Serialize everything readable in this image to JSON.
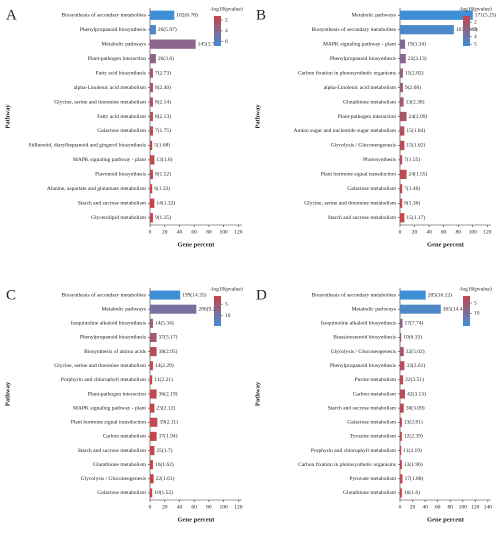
{
  "chart_data": [
    {
      "type": "bar",
      "panel": "A",
      "xlabel": "Gene percent",
      "ylabel": "Pathway",
      "legend_title": "-log10(pvalue)",
      "categories": [
        "Biosynthesis of secondary metabolites",
        "Phenylpropanoid biosynthesis",
        "Metabolic pathways",
        "Plant-pathogen interaction",
        "Fatty acid biosynthesis",
        "alpha-Linolenic acid metabolism",
        "Glycine, serine and threonine metabolism",
        "Fatty acid metabolism",
        "Galactose metabolism",
        "Stilbenoid, diarylheptanoid and gingerol biosynthesis",
        "MAPK signaling pathway - plant",
        "Flavonoid biosynthesis",
        "Alanine, aspartate and glutamate metabolism",
        "Starch and sucrose metabolism",
        "Glycerolipid metabolism"
      ],
      "values": [
        33,
        8,
        62,
        8,
        4,
        4,
        4,
        4,
        4,
        3,
        6,
        4,
        3,
        6,
        4
      ],
      "labels": [
        "102(6.78)",
        "26(5.97)",
        "145(3.77)",
        "26(3.6)",
        "7(2.73)",
        "8(2.40)",
        "8(2.14)",
        "8(2.13)",
        "7(1.75)",
        "5(1.68)",
        "13(1.6)",
        "8(1.52)",
        "6(1.33)",
        "14(1.32)",
        "9(1.25)"
      ],
      "color_values": [
        6.78,
        5.97,
        3.77,
        3.6,
        2.73,
        2.4,
        2.14,
        2.13,
        1.75,
        1.68,
        1.6,
        1.52,
        1.33,
        1.32,
        1.25
      ],
      "xlim": [
        0,
        125
      ],
      "xticks": [
        0,
        20,
        40,
        60,
        80,
        100,
        120
      ],
      "clim": [
        1.25,
        6.78
      ],
      "cticks": [
        2,
        4,
        6
      ],
      "colors": {
        "low": "#c9434a",
        "high": "#3f8fd6"
      }
    },
    {
      "type": "bar",
      "panel": "B",
      "xlabel": "Gene percent",
      "ylabel": "Pathway",
      "legend_title": "-log10(pvalue)",
      "categories": [
        "Metabolic pathways",
        "Biosynthesis of secondary metabolites",
        "MAPK signaling pathway - plant",
        "Phenylpropanoid biosynthesis",
        "Carbon fixation in photosynthetic organisms",
        "alpha-Linolenic acid metabolism",
        "Glutathione metabolism",
        "Plant-pathogen interaction",
        "Amino sugar and nucleotide sugar metabolism",
        "Glycolysis / Gluconeogenesis",
        "Photosynthesis",
        "Plant hormone signal transduction",
        "Galactose metabolism",
        "Glycine, serine and threonine metabolism",
        "Starch and sucrose metabolism"
      ],
      "values": [
        100,
        74,
        7,
        8,
        4,
        4,
        5,
        9,
        6,
        6,
        3,
        9,
        3,
        3,
        6
      ],
      "labels": [
        "171(5.25)",
        "107(4.86)",
        "19(3.34)",
        "22(3.13)",
        "11(2.82)",
        "9(2.68)",
        "13(2.38)",
        "24(2.09)",
        "15(1.84)",
        "15(1.62)",
        "7(1.55)",
        "24(1.55)",
        "7(1.46)",
        "8(1.36)",
        "15(1.17)"
      ],
      "color_values": [
        5.25,
        4.86,
        3.34,
        3.13,
        2.82,
        2.68,
        2.38,
        2.09,
        1.84,
        1.62,
        1.55,
        1.55,
        1.46,
        1.36,
        1.17
      ],
      "xlim": [
        0,
        125
      ],
      "xticks": [
        0,
        20,
        40,
        60,
        80,
        100,
        120
      ],
      "clim": [
        1.17,
        5.25
      ],
      "cticks": [
        2,
        3,
        4,
        5
      ],
      "colors": {
        "low": "#c9434a",
        "high": "#3f8fd6"
      }
    },
    {
      "type": "bar",
      "panel": "C",
      "xlabel": "Gene percent",
      "ylabel": "Pathway",
      "legend_title": "-log10(pvalue)",
      "categories": [
        "Biosynthesis of secondary metabolites",
        "Metabolic pathways",
        "Isoquinoline alkaloid biosynthesis",
        "Phenylpropanoid biosynthesis",
        "Biosynthesis of amino acids",
        "Glycine, serine and threonine metabolism",
        "Porphyrin and chlorophyll metabolism",
        "Plant-pathogen interaction",
        "MAPK signaling pathway - plant",
        "Plant hormone signal transduction",
        "Carbon metabolism",
        "Starch and sucrose metabolism",
        "Glutathione metabolism",
        "Glycolysis / Gluconeogenesis",
        "Galactose metabolism"
      ],
      "values": [
        41,
        63,
        4,
        9,
        9,
        4,
        3,
        9,
        6,
        10,
        9,
        6,
        4,
        5,
        3
      ],
      "labels": [
        "199(14.35)",
        "286(9.27)",
        "14(5.34)",
        "37(5.17)",
        "38(2.95)",
        "14(2.29)",
        "11(2.21)",
        "36(2.19)",
        "23(2.12)",
        "39(2.11)",
        "37(1.94)",
        "25(1.7)",
        "16(1.62)",
        "22(1.61)",
        "10(1.52)"
      ],
      "color_values": [
        14.35,
        9.27,
        5.34,
        5.17,
        2.95,
        2.29,
        2.21,
        2.19,
        2.12,
        2.11,
        1.94,
        1.7,
        1.62,
        1.61,
        1.52
      ],
      "xlim": [
        0,
        125
      ],
      "xticks": [
        0,
        20,
        40,
        60,
        80,
        100,
        120
      ],
      "clim": [
        1.52,
        14.35
      ],
      "cticks": [
        5,
        10
      ],
      "colors": {
        "low": "#c9434a",
        "high": "#3f8fd6"
      }
    },
    {
      "type": "bar",
      "panel": "D",
      "xlabel": "Gene percent",
      "ylabel": "Pathway",
      "legend_title": "-log10(pvalue)",
      "categories": [
        "Biosynthesis of secondary metabolites",
        "Metabolic pathways",
        "Isoquinoline alkaloid biosynthesis",
        "Brassinosteroid biosynthesis",
        "Glycolysis / Gluconeogenesis",
        "Phenylpropanoid biosynthesis",
        "Purine metabolism",
        "Carbon metabolism",
        "Starch and sucrose metabolism",
        "Galactose metabolism",
        "Tyrosine metabolism",
        "Porphyrin and chlorophyll metabolism",
        "Carbon fixation in photosynthetic organisms",
        "Pyruvate metabolism",
        "Glutathione metabolism"
      ],
      "values": [
        41,
        65,
        4,
        2,
        6,
        7,
        5,
        8,
        6,
        3,
        3,
        2,
        3,
        4,
        3
      ],
      "labels": [
        "205(16.12)",
        "305(14.44)",
        "17(7.74)",
        "10(6.33)",
        "32(5.02)",
        "33(3.61)",
        "22(3.51)",
        "42(3.13)",
        "30(3.09)",
        "13(2.81)",
        "12(2.39)",
        "11(2.19)",
        "13(1.96)",
        "17(1.88)",
        "16(1.6)"
      ],
      "color_values": [
        16.12,
        14.44,
        7.74,
        6.33,
        5.02,
        3.61,
        3.51,
        3.13,
        3.09,
        2.81,
        2.39,
        2.19,
        1.96,
        1.88,
        1.6
      ],
      "xlim": [
        0,
        145
      ],
      "xticks": [
        0,
        20,
        40,
        60,
        80,
        100,
        120,
        140
      ],
      "clim": [
        1.6,
        16.12
      ],
      "cticks": [
        5,
        10
      ],
      "colors": {
        "low": "#c9434a",
        "high": "#3f8fd6"
      }
    }
  ]
}
